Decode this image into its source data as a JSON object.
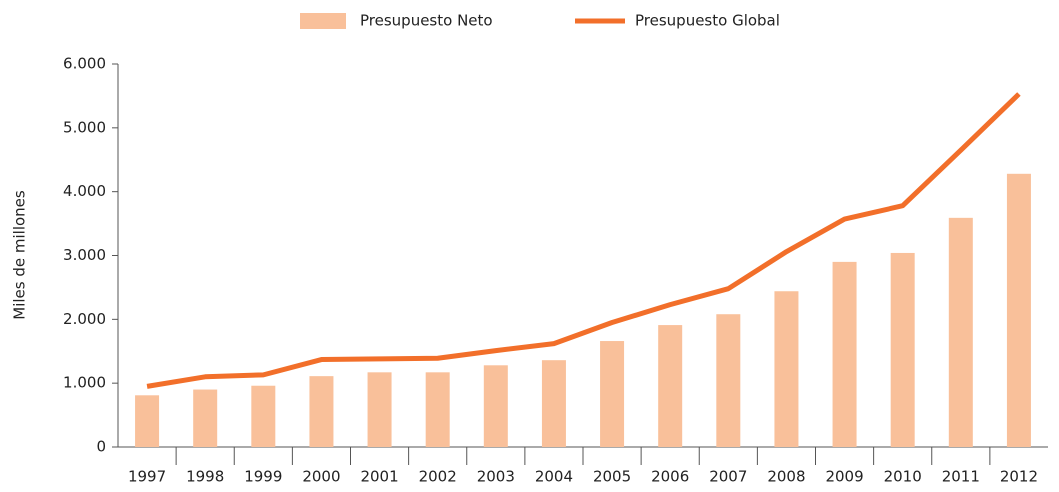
{
  "chart_data": {
    "type": "bar",
    "y_label": "Miles de millones",
    "categories": [
      "1997",
      "1998",
      "1999",
      "2000",
      "2001",
      "2002",
      "2003",
      "2004",
      "2005",
      "2006",
      "2007",
      "2008",
      "2009",
      "2010",
      "2011",
      "2012"
    ],
    "series": [
      {
        "name": "Presupuesto Neto",
        "type": "bar",
        "color": "#f9c09a",
        "values": [
          810,
          900,
          960,
          1110,
          1170,
          1170,
          1280,
          1360,
          1660,
          1910,
          2080,
          2440,
          2900,
          3040,
          3590,
          4280
        ]
      },
      {
        "name": "Presupuesto Global",
        "type": "line",
        "color": "#f26f2a",
        "values": [
          950,
          1100,
          1130,
          1370,
          1380,
          1390,
          1510,
          1620,
          1950,
          2230,
          2480,
          3060,
          3570,
          3780,
          4650,
          5530
        ]
      }
    ],
    "ylim": [
      0,
      6000
    ],
    "yticks": [
      0,
      {
        "value": 1000,
        "label": "1.000"
      },
      {
        "value": 2000,
        "label": "2.000"
      },
      {
        "value": 3000,
        "label": "3.000"
      },
      {
        "value": 4000,
        "label": "4.000"
      },
      {
        "value": 5000,
        "label": "5.000"
      },
      {
        "value": 6000,
        "label": "6.000"
      }
    ],
    "legend": "top"
  }
}
